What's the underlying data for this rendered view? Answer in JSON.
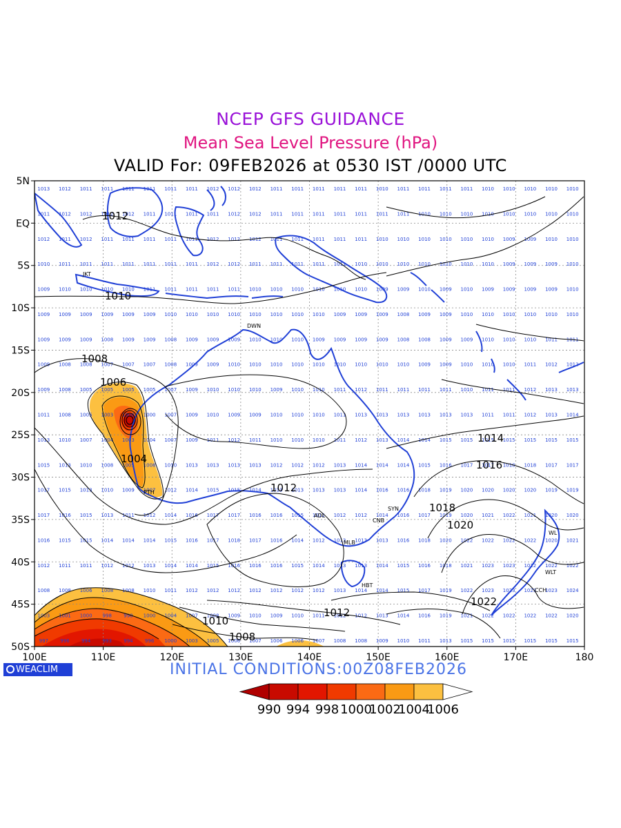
{
  "header": {
    "line1": "NCEP GFS GUIDANCE",
    "line2": "Mean Sea Level Pressure (hPa)",
    "line3": "VALID For: 09FEB2026 at 0530 IST /0000 UTC"
  },
  "brand": {
    "label": "WEACLIM",
    "icon": "globe-icon"
  },
  "footer": {
    "initial": "INITIAL  CONDITIONS:00Z08FEB2026"
  },
  "axes": {
    "lat_labels": [
      "5N",
      "EQ",
      "5S",
      "10S",
      "15S",
      "20S",
      "25S",
      "30S",
      "35S",
      "40S",
      "45S",
      "50S"
    ],
    "lon_labels": [
      "100E",
      "110E",
      "120E",
      "130E",
      "140E",
      "150E",
      "160E",
      "170E",
      "180"
    ],
    "lon_range": [
      100,
      180
    ],
    "lat_range": [
      -50,
      5
    ]
  },
  "colorbar": {
    "labels": [
      "990",
      "994",
      "998",
      "1000",
      "1002",
      "1004",
      "1006"
    ],
    "colors": [
      "#b50000",
      "#c80a00",
      "#e21600",
      "#f03a00",
      "#fb6a14",
      "#fa9a14",
      "#fcc040"
    ]
  },
  "colors": {
    "coast": "#1f3fd6",
    "station_text": "#1f3fd6",
    "contour": "#000000",
    "grid": "#888888"
  },
  "stations": [
    "JKT",
    "DWN",
    "PTH",
    "ADL",
    "MLB",
    "CNB",
    "SYN",
    "HBT",
    "CCH",
    "WLT",
    "WL"
  ],
  "contour_labels": [
    "1012",
    "1010",
    "1008",
    "1006",
    "1004",
    "1012",
    "1014",
    "1016",
    "1018",
    "1020",
    "1022",
    "1012",
    "1010",
    "1008"
  ],
  "grid_rows": [
    [
      "1013",
      "1012",
      "1011",
      "1011",
      "1011",
      "1011",
      "1011",
      "1011",
      "1012",
      "1012",
      "1012",
      "1011",
      "1011",
      "1011",
      "1011",
      "1011",
      "1010",
      "1011",
      "1011",
      "1011",
      "1011",
      "1010",
      "1010",
      "1010",
      "1010",
      "1010"
    ],
    [
      "1011",
      "1012",
      "1012",
      "1012",
      "1012",
      "1011",
      "1011",
      "1011",
      "1011",
      "1012",
      "1012",
      "1011",
      "1011",
      "1011",
      "1011",
      "1011",
      "1011",
      "1011",
      "1010",
      "1010",
      "1010",
      "1010",
      "1010",
      "1010",
      "1010",
      "1010"
    ],
    [
      "1012",
      "1011",
      "1012",
      "1011",
      "1011",
      "1011",
      "1011",
      "1011",
      "1012",
      "1012",
      "1012",
      "1011",
      "1011",
      "1011",
      "1011",
      "1011",
      "1010",
      "1010",
      "1010",
      "1010",
      "1010",
      "1010",
      "1009",
      "1009",
      "1010",
      "1010"
    ],
    [
      "1010",
      "1011",
      "1011",
      "1011",
      "1011",
      "1011",
      "1011",
      "1011",
      "1012",
      "1012",
      "1011",
      "1011",
      "1011",
      "1011",
      "1011",
      "1010",
      "1010",
      "1010",
      "1010",
      "1010",
      "1010",
      "1010",
      "1009",
      "1009",
      "1009",
      "1010"
    ],
    [
      "1009",
      "1010",
      "1010",
      "1010",
      "1010",
      "1011",
      "1011",
      "1011",
      "1011",
      "1011",
      "1010",
      "1010",
      "1010",
      "1010",
      "1010",
      "1010",
      "1009",
      "1009",
      "1010",
      "1009",
      "1010",
      "1009",
      "1009",
      "1009",
      "1009",
      "1010"
    ],
    [
      "1009",
      "1009",
      "1009",
      "1009",
      "1009",
      "1009",
      "1010",
      "1010",
      "1010",
      "1010",
      "1010",
      "1010",
      "1010",
      "1010",
      "1009",
      "1009",
      "1009",
      "1008",
      "1009",
      "1009",
      "1010",
      "1010",
      "1010",
      "1010",
      "1010",
      "1010"
    ],
    [
      "1009",
      "1009",
      "1009",
      "1008",
      "1009",
      "1009",
      "1008",
      "1009",
      "1009",
      "1009",
      "1010",
      "1010",
      "1010",
      "1009",
      "1009",
      "1009",
      "1009",
      "1008",
      "1008",
      "1009",
      "1009",
      "1010",
      "1010",
      "1010",
      "1011",
      "1011"
    ],
    [
      "1009",
      "1008",
      "1008",
      "1007",
      "1007",
      "1007",
      "1008",
      "1009",
      "1009",
      "1010",
      "1010",
      "1010",
      "1010",
      "1010",
      "1010",
      "1010",
      "1010",
      "1010",
      "1009",
      "1009",
      "1010",
      "1010",
      "1010",
      "1011",
      "1012",
      "1012"
    ],
    [
      "1009",
      "1008",
      "1005",
      "1005",
      "1005",
      "1005",
      "1007",
      "1009",
      "1010",
      "1010",
      "1010",
      "1009",
      "1010",
      "1010",
      "1011",
      "1012",
      "1011",
      "1011",
      "1011",
      "1011",
      "1010",
      "1011",
      "1011",
      "1012",
      "1013",
      "1013"
    ],
    [
      "1011",
      "1008",
      "1005",
      "1003",
      "1000",
      "1000",
      "1007",
      "1009",
      "1010",
      "1009",
      "1009",
      "1010",
      "1010",
      "1010",
      "1011",
      "1013",
      "1013",
      "1013",
      "1013",
      "1013",
      "1013",
      "1011",
      "1011",
      "1012",
      "1013",
      "1014"
    ],
    [
      "1013",
      "1010",
      "1007",
      "1004",
      "1003",
      "1004",
      "1007",
      "1009",
      "1011",
      "1012",
      "1011",
      "1010",
      "1010",
      "1010",
      "1011",
      "1012",
      "1013",
      "1014",
      "1014",
      "1015",
      "1015",
      "1015",
      "1015",
      "1015",
      "1015",
      "1015"
    ],
    [
      "1015",
      "1013",
      "1010",
      "1008",
      "1005",
      "1008",
      "1010",
      "1013",
      "1013",
      "1013",
      "1013",
      "1012",
      "1012",
      "1012",
      "1013",
      "1014",
      "1014",
      "1014",
      "1015",
      "1016",
      "1017",
      "1017",
      "1018",
      "1018",
      "1017",
      "1017"
    ],
    [
      "1017",
      "1015",
      "1013",
      "1010",
      "1009",
      "1007",
      "1012",
      "1014",
      "1015",
      "1015",
      "1014",
      "1013",
      "1013",
      "1013",
      "1013",
      "1014",
      "1016",
      "1016",
      "1018",
      "1019",
      "1020",
      "1020",
      "1020",
      "1020",
      "1019",
      "1019"
    ],
    [
      "1017",
      "1016",
      "1015",
      "1013",
      "1011",
      "1012",
      "1014",
      "1016",
      "1017",
      "1017",
      "1016",
      "1016",
      "1015",
      "1012",
      "1012",
      "1012",
      "1014",
      "1016",
      "1017",
      "1019",
      "1020",
      "1021",
      "1022",
      "1021",
      "1020",
      "1020"
    ],
    [
      "1016",
      "1015",
      "1015",
      "1014",
      "1014",
      "1014",
      "1015",
      "1016",
      "1017",
      "1018",
      "1017",
      "1016",
      "1014",
      "1012",
      "1013",
      "1013",
      "1013",
      "1016",
      "1018",
      "1020",
      "1022",
      "1022",
      "1022",
      "1022",
      "1020",
      "1021"
    ],
    [
      "1012",
      "1011",
      "1011",
      "1012",
      "1012",
      "1013",
      "1014",
      "1014",
      "1015",
      "1016",
      "1016",
      "1016",
      "1015",
      "1014",
      "1013",
      "1013",
      "1014",
      "1015",
      "1016",
      "1018",
      "1021",
      "1023",
      "1023",
      "1022",
      "1022",
      "1022"
    ],
    [
      "1008",
      "1008",
      "1006",
      "1008",
      "1008",
      "1010",
      "1011",
      "1012",
      "1012",
      "1012",
      "1012",
      "1012",
      "1012",
      "1012",
      "1013",
      "1014",
      "1014",
      "1015",
      "1017",
      "1019",
      "1022",
      "1023",
      "1023",
      "1023",
      "1023",
      "1024"
    ],
    [
      "1003",
      "1001",
      "1000",
      "998",
      "998",
      "1000",
      "1004",
      "1007",
      "1008",
      "1009",
      "1010",
      "1009",
      "1010",
      "1011",
      "1012",
      "1012",
      "1013",
      "1014",
      "1016",
      "1019",
      "1021",
      "1022",
      "1022",
      "1022",
      "1022",
      "1020"
    ],
    [
      "997",
      "996",
      "994",
      "993",
      "994",
      "996",
      "1000",
      "1003",
      "1005",
      "1006",
      "1007",
      "1006",
      "1006",
      "1007",
      "1008",
      "1008",
      "1009",
      "1010",
      "1011",
      "1013",
      "1015",
      "1015",
      "1015",
      "1015",
      "1015",
      "1015"
    ]
  ]
}
